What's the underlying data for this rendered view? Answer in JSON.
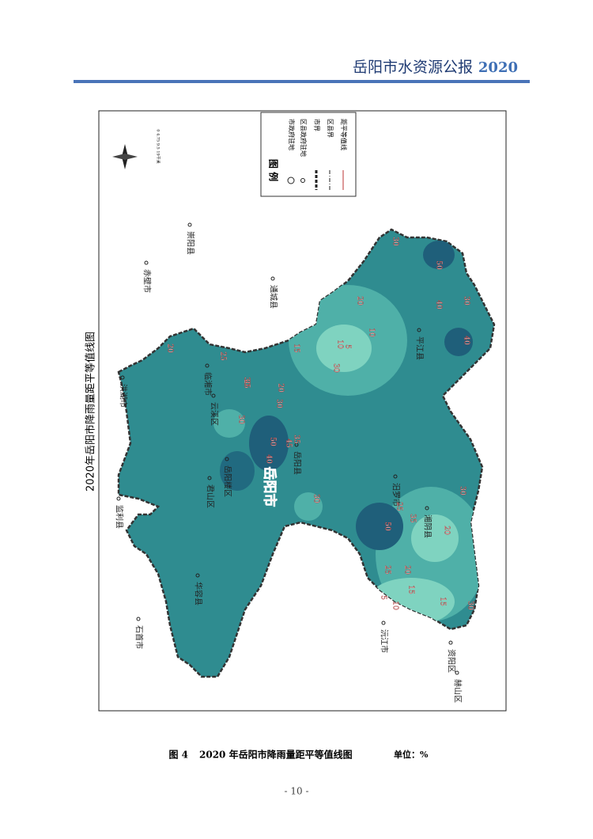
{
  "header": {
    "title": "岳阳市水资源公报",
    "year": "2020"
  },
  "map": {
    "title": "2020年岳阳市降雨量距平等值线图",
    "city": "岳阳市",
    "legend": {
      "title": "图 例",
      "items": [
        "市政府驻地",
        "区县政府驻地",
        "市界",
        "区县界",
        "距平等值线"
      ]
    },
    "scale": "0 4.75 9.5 19千米",
    "places": [
      "临湘市",
      "通城县",
      "崇阳县",
      "赤壁市",
      "洪湖市",
      "监利县",
      "华容县",
      "石首市",
      "沅江市",
      "资阳区",
      "赫山区",
      "湘阴县",
      "汨罗市",
      "平江县",
      "岳阳县",
      "云溪区",
      "君山区",
      "岳阳楼区"
    ],
    "contour_labels": [
      20,
      25,
      30,
      25,
      30,
      50,
      45,
      40,
      35,
      30,
      20,
      15,
      10,
      5,
      30,
      20,
      10,
      30,
      40,
      30,
      40,
      50,
      25,
      20,
      15,
      10,
      5,
      15,
      30,
      20,
      25,
      30,
      50,
      35,
      30
    ]
  },
  "caption": {
    "figure": "图 4",
    "text": "2020 年岳阳市降雨量距平等值线图",
    "unit": "单位：%"
  },
  "page_number": "- 10 -"
}
